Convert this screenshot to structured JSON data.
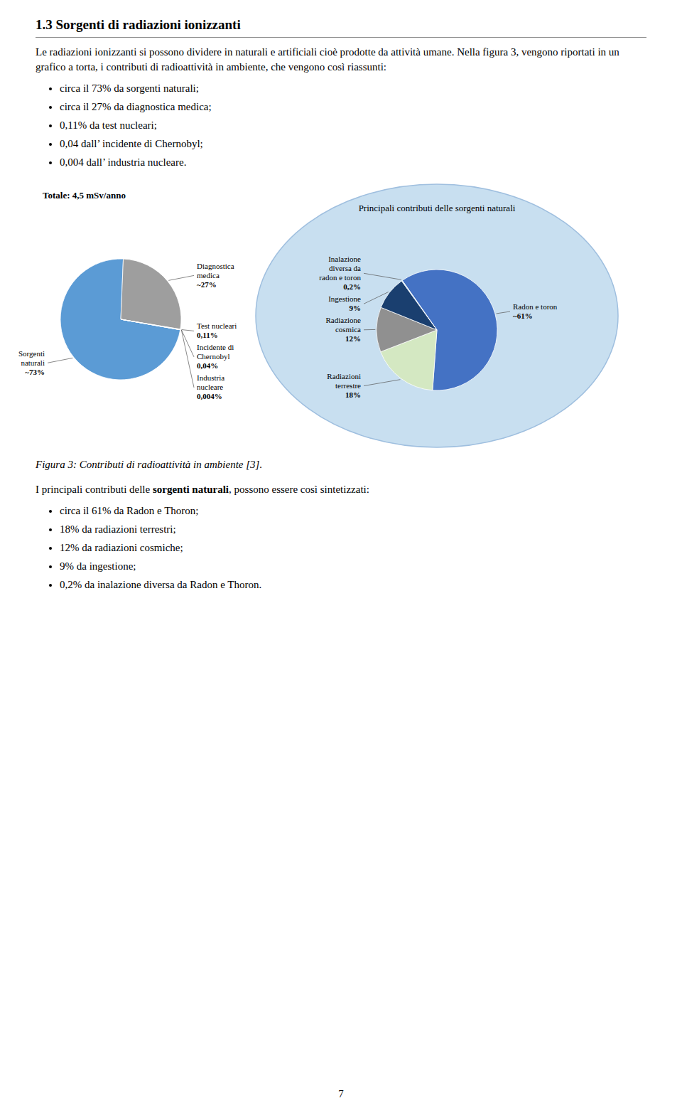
{
  "chart_data": [
    {
      "type": "pie",
      "title": "Totale: 4,5 mSv/anno",
      "categories": [
        "Sorgenti naturali",
        "Diagnostica medica",
        "Test nucleari",
        "Incidente di Chernobyl",
        "Industria nucleare"
      ],
      "values": [
        73,
        27,
        0.11,
        0.04,
        0.004
      ],
      "value_labels": [
        "~73%",
        "~27%",
        "0,11%",
        "0,04%",
        "0,004%"
      ],
      "colors": [
        "#5b9bd5",
        "#9e9e9e",
        "#bdbdbd",
        "#6a6a8a",
        "#a0a0a0"
      ]
    },
    {
      "type": "pie",
      "title": "Principali contributi delle sorgenti naturali",
      "categories": [
        "Radon e toron",
        "Radiazioni terrestre",
        "Radiazione cosmica",
        "Ingestione",
        "Inalazione diversa da radon e toron"
      ],
      "values": [
        61,
        18,
        12,
        9,
        0.2
      ],
      "value_labels": [
        "~61%",
        "18%",
        "12%",
        "9%",
        "0,2%"
      ],
      "colors": [
        "#4472c4",
        "#d4e8c2",
        "#909090",
        "#1a3f6f",
        "#aed6f1"
      ]
    }
  ],
  "page": {
    "title": "1.3 Sorgenti di radiazioni ionizzanti",
    "paragraph1": [
      "Le radiazioni ionizzanti si possono dividere in naturali e artificiali cioè prodotte da",
      "attività umane. Nella figura 3, vengono riportati in un grafico a torta, i contributi di",
      "radioattività in ambiente, che vengono così riassunti:"
    ],
    "bullets1": [
      "circa il 73% da sorgenti naturali;",
      "circa il 27% da diagnostica medica;",
      "0,11% da test nucleari;",
      "0,04 dall’ incidente di Chernobyl;",
      "0,004 dall’ industria nucleare."
    ],
    "caption": "Figura 3: Contributi di radioattività in ambiente [3].",
    "paragraph2": {
      "before": "I principali contributi delle ",
      "bold": "sorgenti naturali",
      "after": ", possono essere così sintetizzati:"
    },
    "bullets2": [
      "circa il 61% da Radon e Thoron;",
      "18% da radiazioni terrestri;",
      "12% da radiazioni cosmiche;",
      "9% da ingestione;",
      "0,2% da inalazione diversa da Radon e Thoron."
    ],
    "page_number": "7"
  }
}
